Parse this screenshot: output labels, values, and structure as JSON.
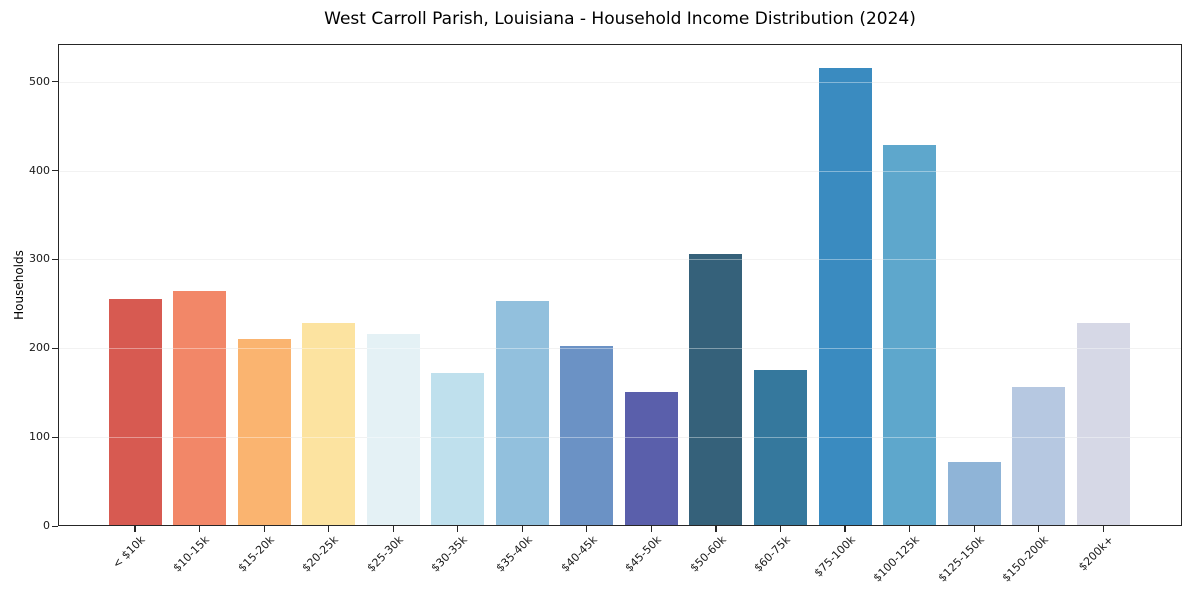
{
  "chart_data": {
    "type": "bar",
    "title": "West Carroll Parish, Louisiana - Household Income Distribution (2024)",
    "xlabel": "",
    "ylabel": "Households",
    "categories": [
      "< $10k",
      "$10-15k",
      "$15-20k",
      "$20-25k",
      "$25-30k",
      "$30-35k",
      "$35-40k",
      "$40-45k",
      "$45-50k",
      "$50-60k",
      "$60-75k",
      "$75-100k",
      "$100-125k",
      "$125-150k",
      "$150-200k",
      "$200k+"
    ],
    "values": [
      256,
      265,
      210,
      229,
      216,
      172,
      253,
      203,
      151,
      306,
      176,
      516,
      429,
      72,
      157,
      229
    ],
    "bar_colors": [
      "#d75a51",
      "#f28768",
      "#fab470",
      "#fce3a0",
      "#e4f1f5",
      "#bfe0ed",
      "#92c0dd",
      "#6b92c5",
      "#5a5fab",
      "#35617a",
      "#35789d",
      "#3a8bc0",
      "#5ea7cc",
      "#8fb4d7",
      "#b6c8e1",
      "#d6d8e6"
    ],
    "yticks": [
      0,
      100,
      200,
      300,
      400,
      500
    ],
    "ylim": [
      0,
      542
    ],
    "grid": "horizontal",
    "legend": "none",
    "background_color": "#ffffff",
    "axis_color": "#262626",
    "grid_color": "#ebebeb",
    "text_color": "#1a1a1a"
  }
}
